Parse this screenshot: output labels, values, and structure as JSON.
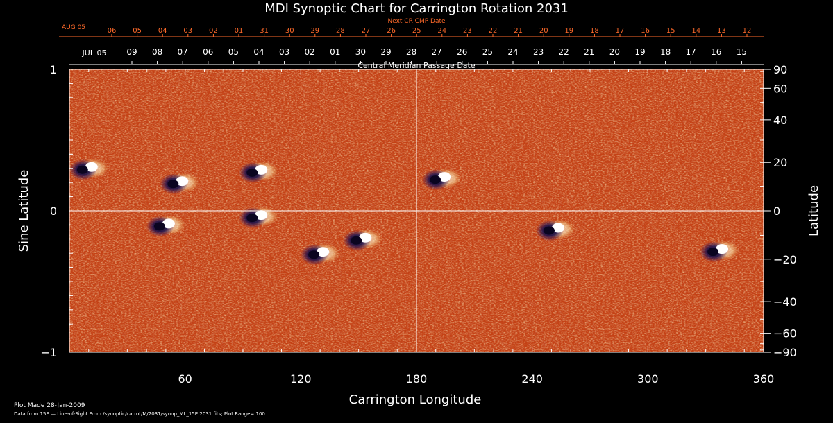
{
  "chart_data": {
    "type": "heatmap",
    "title": "MDI Synoptic Chart for Carrington Rotation 2031",
    "xlabel": "Carrington Longitude",
    "ylabel_left": "Sine Latitude",
    "ylabel_right": "Latitude",
    "xlim": [
      0,
      360
    ],
    "ylim": [
      -1,
      1
    ],
    "x_ticks": [
      60,
      120,
      180,
      240,
      300,
      360
    ],
    "y_ticks_left": [
      {
        "value": 1,
        "label": "1"
      },
      {
        "value": 0,
        "label": "0"
      },
      {
        "value": -1,
        "label": "−1"
      }
    ],
    "y_ticks_right": [
      {
        "lat": 90,
        "label": "90"
      },
      {
        "lat": 60,
        "label": "60"
      },
      {
        "lat": 40,
        "label": "40"
      },
      {
        "lat": 20,
        "label": "20"
      },
      {
        "lat": 0,
        "label": "0"
      },
      {
        "lat": -20,
        "label": "−20"
      },
      {
        "lat": -40,
        "label": "−40"
      },
      {
        "lat": -60,
        "label": "−60"
      },
      {
        "lat": -90,
        "label": "−90"
      }
    ],
    "top_axis": {
      "next_cr_label": "Next CR CMP Date",
      "next_cr_month": "AUG 05",
      "next_cr_dates": [
        "06",
        "05",
        "04",
        "03",
        "02",
        "01",
        "31",
        "30",
        "29",
        "28",
        "27",
        "26",
        "25",
        "24",
        "23",
        "22",
        "21",
        "20",
        "19",
        "18",
        "17",
        "16",
        "15",
        "14",
        "13",
        "12"
      ],
      "cmp_label": "Central Meridian Passage Date",
      "cmp_month": "JUL 05",
      "cmp_dates": [
        "09",
        "08",
        "07",
        "06",
        "05",
        "04",
        "03",
        "02",
        "01",
        "30",
        "29",
        "28",
        "27",
        "26",
        "25",
        "24",
        "23",
        "22",
        "21",
        "20",
        "19",
        "18",
        "17",
        "16",
        "15"
      ]
    },
    "footer": {
      "plot_made": "Plot Made 28-Jan-2009",
      "source": "Data from 15E — Line-of-Sight From /synoptic/carrot/M/2031/synop_ML_15E.2031.fits; Plot Range= 100"
    },
    "active_regions": [
      {
        "lon": 10,
        "sinlat": 0.3
      },
      {
        "lon": 57,
        "sinlat": 0.2
      },
      {
        "lon": 98,
        "sinlat": 0.28
      },
      {
        "lon": 50,
        "sinlat": -0.1
      },
      {
        "lon": 98,
        "sinlat": -0.04
      },
      {
        "lon": 130,
        "sinlat": -0.3
      },
      {
        "lon": 152,
        "sinlat": -0.2
      },
      {
        "lon": 193,
        "sinlat": 0.23
      },
      {
        "lon": 252,
        "sinlat": -0.13
      },
      {
        "lon": 337,
        "sinlat": -0.28
      }
    ],
    "colors": {
      "background": "#000000",
      "field_base": "#e8501a",
      "positive_polarity": "#ffffff",
      "negative_polarity": "#12083a",
      "top_axis": "#ff6a2a",
      "axes": "#ffffff"
    }
  }
}
